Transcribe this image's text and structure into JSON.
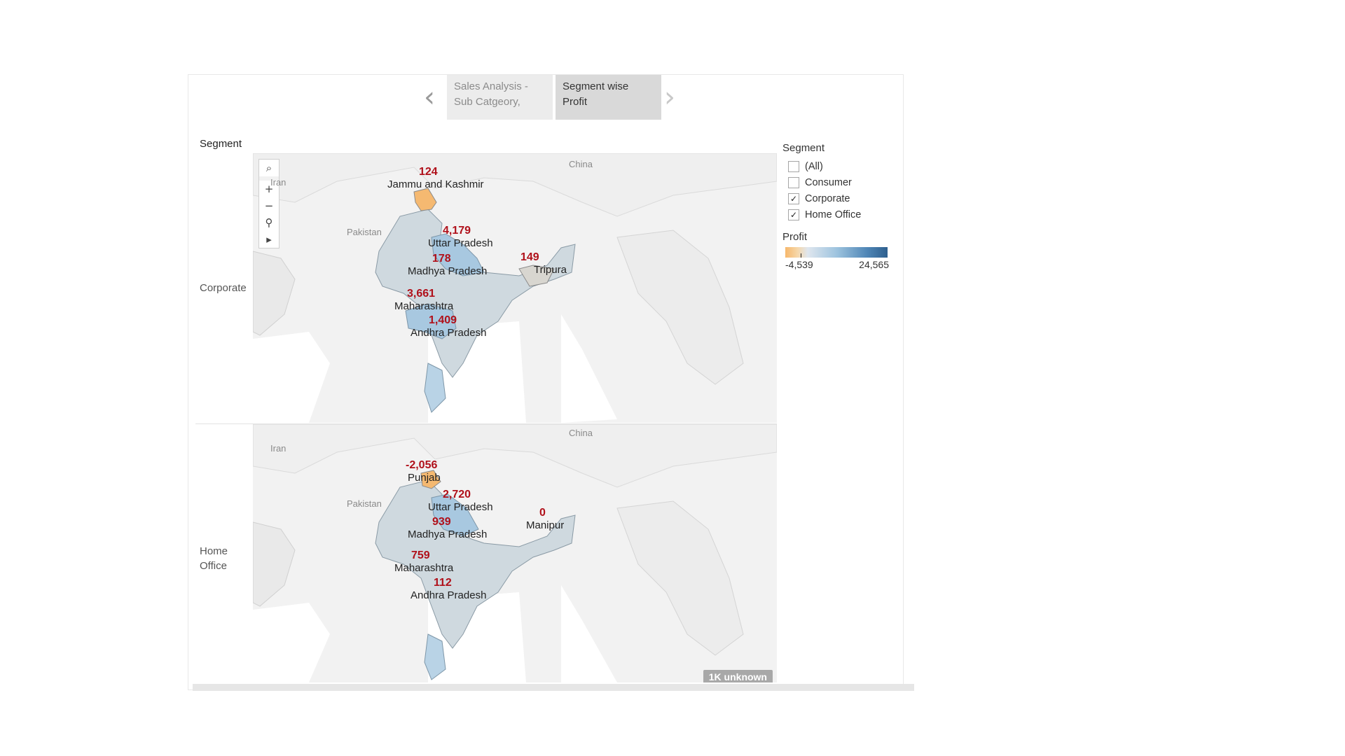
{
  "story": {
    "points": [
      {
        "label_line1": "Sales Analysis -",
        "label_line2": "Sub Catgeory,"
      },
      {
        "label_line1": "Segment wise",
        "label_line2": "Profit"
      }
    ]
  },
  "worksheet": {
    "column_header": "Segment",
    "rows": [
      {
        "segment_line1": "Corporate",
        "segment_line2": ""
      },
      {
        "segment_line1": "Home",
        "segment_line2": "Office"
      }
    ],
    "countries": {
      "iran": "Iran",
      "pakistan": "Pakistan",
      "china": "China"
    },
    "corporate": [
      {
        "profit": "124",
        "state": "Jammu and Kashmir"
      },
      {
        "profit": "4,179",
        "state": "Uttar Pradesh"
      },
      {
        "profit": "178",
        "state": "Madhya Pradesh"
      },
      {
        "profit": "149",
        "state": "Tripura"
      },
      {
        "profit": "3,661",
        "state": "Maharashtra"
      },
      {
        "profit": "1,409",
        "state": "Andhra Pradesh"
      }
    ],
    "home_office": [
      {
        "profit": "-2,056",
        "state": "Punjab"
      },
      {
        "profit": "2,720",
        "state": "Uttar Pradesh"
      },
      {
        "profit": "0",
        "state": "Manipur"
      },
      {
        "profit": "939",
        "state": "Madhya Pradesh"
      },
      {
        "profit": "759",
        "state": "Maharashtra"
      },
      {
        "profit": "112",
        "state": "Andhra Pradesh"
      }
    ],
    "unknown_badge": "1K unknown"
  },
  "filter": {
    "title": "Segment",
    "items": [
      {
        "label": "(All)",
        "checked": ""
      },
      {
        "label": "Consumer",
        "checked": ""
      },
      {
        "label": "Corporate",
        "checked": "✓"
      },
      {
        "label": "Home Office",
        "checked": "✓"
      }
    ]
  },
  "legend": {
    "title": "Profit",
    "min": "-4,539",
    "max": "24,565",
    "colors": {
      "negative": "#f6b76b",
      "mid": "#dfe6ee",
      "positive": "#2e5f8e"
    }
  },
  "toolbar_icons": [
    "search-icon",
    "zoom-in-icon",
    "zoom-out-icon",
    "pin-icon",
    "expand-icon"
  ]
}
